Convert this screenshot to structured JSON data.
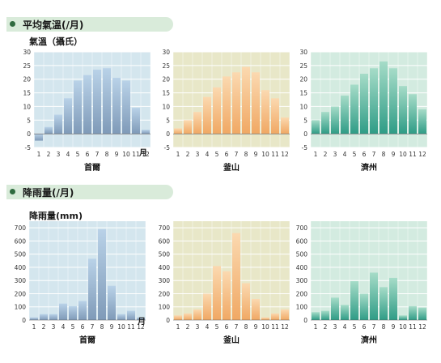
{
  "sections": {
    "temperature": {
      "title": "平均氣溫(/月)",
      "unit": "氣溫（攝氏）",
      "month_label": "月"
    },
    "precipitation": {
      "title": "降雨量(/月)",
      "unit": "降雨量(mm)",
      "month_label": "月"
    }
  },
  "colors": {
    "seoul_bg": "#d4e6ee",
    "seoul_bar_top": "#b9d2e8",
    "seoul_bar_bottom": "#7f9ab8",
    "busan_bg": "#e8e7c8",
    "busan_bar_top": "#fbd9b0",
    "busan_bar_bottom": "#f0a864",
    "jeju_bg": "#d3ebe0",
    "jeju_bar_top": "#a6dcc8",
    "jeju_bar_bottom": "#2f9c86"
  },
  "chart_data": [
    {
      "type": "bar",
      "city": "首爾",
      "series_group": "temperature",
      "categories": [
        "1",
        "2",
        "3",
        "4",
        "5",
        "6",
        "7",
        "8",
        "9",
        "10",
        "11",
        "12"
      ],
      "values": [
        -2.5,
        2.5,
        7,
        13,
        19.5,
        21.5,
        23.5,
        24,
        20.5,
        19.5,
        9.5,
        1.5
      ],
      "ylim": [
        -5,
        30
      ],
      "yticks": [
        "30",
        "25",
        "20",
        "15",
        "10",
        "5",
        "0",
        "-5"
      ]
    },
    {
      "type": "bar",
      "city": "釜山",
      "series_group": "temperature",
      "categories": [
        "1",
        "2",
        "3",
        "4",
        "5",
        "6",
        "7",
        "8",
        "9",
        "10",
        "11",
        "12"
      ],
      "values": [
        2,
        5,
        8,
        13.5,
        17,
        21,
        22.5,
        24.5,
        22.5,
        16,
        13,
        6
      ],
      "ylim": [
        -5,
        30
      ],
      "yticks": [
        "30",
        "25",
        "20",
        "15",
        "10",
        "5",
        "0",
        "-5"
      ]
    },
    {
      "type": "bar",
      "city": "濟州",
      "series_group": "temperature",
      "categories": [
        "1",
        "2",
        "3",
        "4",
        "5",
        "6",
        "7",
        "8",
        "9",
        "10",
        "11",
        "12"
      ],
      "values": [
        5,
        8,
        10,
        14,
        18,
        22,
        24,
        26.5,
        24,
        17.5,
        14.5,
        9
      ],
      "ylim": [
        -5,
        30
      ],
      "yticks": [
        "30",
        "25",
        "20",
        "15",
        "10",
        "5",
        "0",
        "-5"
      ]
    },
    {
      "type": "bar",
      "city": "首爾",
      "series_group": "precipitation",
      "categories": [
        "1",
        "2",
        "3",
        "4",
        "5",
        "6",
        "7",
        "8",
        "9",
        "10",
        "11",
        "12"
      ],
      "values": [
        20,
        45,
        45,
        125,
        105,
        145,
        465,
        690,
        260,
        45,
        70,
        20
      ],
      "ylim": [
        0,
        750
      ],
      "yticks": [
        "700",
        "600",
        "500",
        "400",
        "300",
        "200",
        "100",
        "0"
      ]
    },
    {
      "type": "bar",
      "city": "釜山",
      "series_group": "precipitation",
      "categories": [
        "1",
        "2",
        "3",
        "4",
        "5",
        "6",
        "7",
        "8",
        "9",
        "10",
        "11",
        "12"
      ],
      "values": [
        35,
        50,
        80,
        200,
        410,
        370,
        660,
        280,
        160,
        20,
        50,
        80
      ],
      "ylim": [
        0,
        750
      ],
      "yticks": [
        "700",
        "600",
        "500",
        "400",
        "300",
        "200",
        "100",
        "0"
      ]
    },
    {
      "type": "bar",
      "city": "濟州",
      "series_group": "precipitation",
      "categories": [
        "1",
        "2",
        "3",
        "4",
        "5",
        "6",
        "7",
        "8",
        "9",
        "10",
        "11",
        "12"
      ],
      "values": [
        60,
        70,
        170,
        115,
        295,
        200,
        360,
        250,
        320,
        35,
        105,
        95
      ],
      "ylim": [
        0,
        750
      ],
      "yticks": [
        "700",
        "600",
        "500",
        "400",
        "300",
        "200",
        "100",
        "0"
      ]
    }
  ]
}
